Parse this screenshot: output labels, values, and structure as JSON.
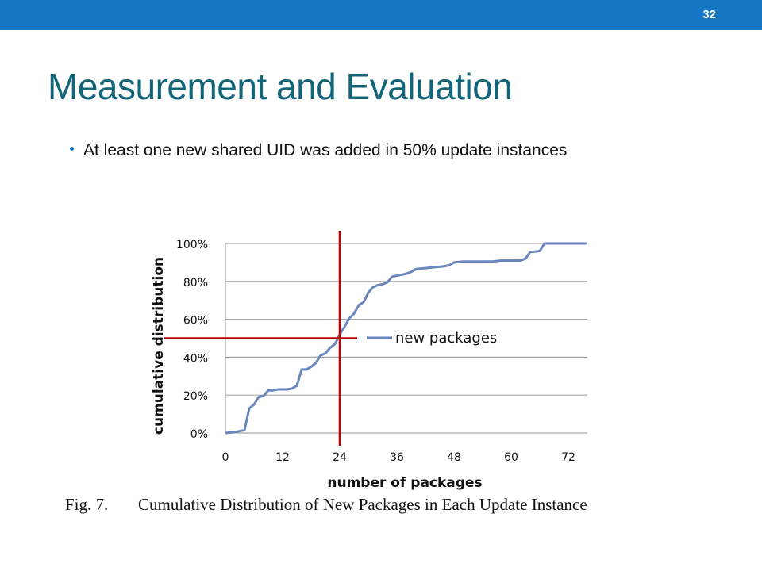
{
  "slide": {
    "number": "32",
    "title": "Measurement and Evaluation",
    "bullets": [
      "At least one new shared UID was added in 50% update instances"
    ]
  },
  "caption": {
    "figure": "Fig. 7.",
    "text": "Cumulative Distribution of New Packages in Each Update Instance"
  },
  "colors": {
    "topbar": "#1676c4",
    "title": "#13657a",
    "series": "#6a86be",
    "marker_lines": "#c00000",
    "grid": "#a6a6a6"
  },
  "chart_data": {
    "type": "line",
    "xlabel": "number of packages",
    "ylabel": "cumulative distribution",
    "xlim": [
      0,
      76
    ],
    "ylim": [
      0,
      100
    ],
    "x_ticks": [
      "0",
      "12",
      "24",
      "36",
      "48",
      "60",
      "72"
    ],
    "y_ticks": [
      "0%",
      "20%",
      "40%",
      "60%",
      "80%",
      "100%"
    ],
    "grid": "horizontal",
    "legend": "right",
    "series": [
      {
        "name": "new packages",
        "points": [
          [
            0,
            0
          ],
          [
            2,
            0.5
          ],
          [
            4,
            1.5
          ],
          [
            5,
            13
          ],
          [
            6,
            15
          ],
          [
            7,
            19
          ],
          [
            8,
            19.5
          ],
          [
            9,
            22.5
          ],
          [
            10,
            22.5
          ],
          [
            11,
            23
          ],
          [
            13,
            23
          ],
          [
            14,
            23.5
          ],
          [
            15,
            25
          ],
          [
            16,
            33.5
          ],
          [
            17,
            33.5
          ],
          [
            18,
            35
          ],
          [
            19,
            37
          ],
          [
            20,
            41
          ],
          [
            21,
            42
          ],
          [
            22,
            45
          ],
          [
            23,
            47
          ],
          [
            24,
            52
          ],
          [
            25,
            56
          ],
          [
            26,
            60.5
          ],
          [
            27,
            63
          ],
          [
            28,
            67.5
          ],
          [
            29,
            69
          ],
          [
            30,
            74
          ],
          [
            31,
            77
          ],
          [
            32,
            78
          ],
          [
            33,
            78.5
          ],
          [
            34,
            79.5
          ],
          [
            35,
            82.5
          ],
          [
            37,
            83.5
          ],
          [
            38,
            84
          ],
          [
            39,
            85
          ],
          [
            40,
            86.5
          ],
          [
            42,
            87
          ],
          [
            44,
            87.5
          ],
          [
            46,
            88
          ],
          [
            47,
            88.5
          ],
          [
            48,
            90
          ],
          [
            50,
            90.5
          ],
          [
            52,
            90.5
          ],
          [
            54,
            90.5
          ],
          [
            56,
            90.5
          ],
          [
            58,
            91
          ],
          [
            60,
            91
          ],
          [
            62,
            91
          ],
          [
            63,
            92
          ],
          [
            64,
            95.5
          ],
          [
            66,
            96
          ],
          [
            67,
            100
          ],
          [
            70,
            100
          ],
          [
            76,
            100
          ]
        ]
      }
    ],
    "reference_lines": {
      "x": 24,
      "y": 50
    }
  }
}
